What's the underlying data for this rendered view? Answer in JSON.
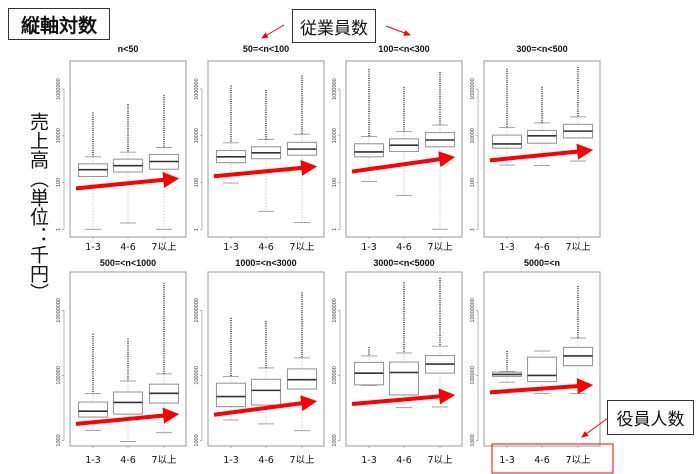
{
  "header": {
    "scale_note": "縦軸対数",
    "employees_label": "従業員数",
    "officers_label": "役員人数",
    "ylabel": "売上高（単位：千円）"
  },
  "colors": {
    "arrow": "#ff0000",
    "box": "#999999",
    "median": "#333333",
    "frame": "#aaaaaa"
  },
  "chart_data": [
    {
      "type": "box",
      "title": "n<50",
      "categories": [
        "1-3",
        "4-6",
        "7以上"
      ],
      "yscale": "log10",
      "ylim_log10": [
        -0.33,
        7.2
      ],
      "yticks": [
        {
          "log": 0,
          "label": "1"
        },
        {
          "log": 2,
          "label": "100"
        },
        {
          "log": 4,
          "label": "10000"
        },
        {
          "log": 6,
          "label": "1000000"
        }
      ],
      "boxes_log10": [
        {
          "lo": 0,
          "q1": 2.26,
          "med": 2.55,
          "q3": 2.8,
          "hi": 3.1,
          "max": 5.0
        },
        {
          "lo": 0.27,
          "q1": 2.45,
          "med": 2.72,
          "q3": 3.0,
          "hi": 3.3,
          "max": 5.36
        },
        {
          "lo": 0,
          "q1": 2.57,
          "med": 2.9,
          "q3": 3.2,
          "hi": 3.5,
          "max": 5.75
        }
      ],
      "trend_arrow_log10": [
        1.75,
        2.15
      ]
    },
    {
      "type": "box",
      "title": "50=<n<100",
      "categories": [
        "1-3",
        "4-6",
        "7以上"
      ],
      "yscale": "log10",
      "ylim_log10": [
        -0.33,
        7.2
      ],
      "yticks": [
        {
          "log": 0,
          "label": "1"
        },
        {
          "log": 2,
          "label": "100"
        },
        {
          "log": 4,
          "label": "10000"
        },
        {
          "log": 6,
          "label": "1000000"
        }
      ],
      "boxes_log10": [
        {
          "lo": 1.98,
          "q1": 2.85,
          "med": 3.1,
          "q3": 3.37,
          "hi": 3.7,
          "max": 6.15
        },
        {
          "lo": 0.77,
          "q1": 3.02,
          "med": 3.27,
          "q3": 3.53,
          "hi": 3.84,
          "max": 5.96
        },
        {
          "lo": 0.29,
          "q1": 3.17,
          "med": 3.43,
          "q3": 3.72,
          "hi": 4.07,
          "max": 6.58
        }
      ],
      "trend_arrow_log10": [
        2.27,
        2.66
      ]
    },
    {
      "type": "box",
      "title": "100=<n<300",
      "categories": [
        "1-3",
        "4-6",
        "7以上"
      ],
      "yscale": "log10",
      "ylim_log10": [
        -0.33,
        7.2
      ],
      "yticks": [
        {
          "log": 0,
          "label": "1"
        },
        {
          "log": 2,
          "label": "100"
        },
        {
          "log": 4,
          "label": "10000"
        },
        {
          "log": 6,
          "label": "1000000"
        }
      ],
      "boxes_log10": [
        {
          "lo": 2.05,
          "q1": 3.1,
          "med": 3.31,
          "q3": 3.66,
          "hi": 3.97,
          "max": 6.85
        },
        {
          "lo": 1.45,
          "q1": 3.33,
          "med": 3.6,
          "q3": 3.87,
          "hi": 4.19,
          "max": 6.1
        },
        {
          "lo": 0,
          "q1": 3.53,
          "med": 3.82,
          "q3": 4.14,
          "hi": 4.46,
          "max": 6.73
        }
      ],
      "trend_arrow_log10": [
        2.47,
        3.05
      ]
    },
    {
      "type": "box",
      "title": "300=<n<500",
      "categories": [
        "1-3",
        "4-6",
        "7以上"
      ],
      "yscale": "log10",
      "ylim_log10": [
        -0.33,
        7.2
      ],
      "yticks": [
        {
          "log": 0,
          "label": "1"
        },
        {
          "log": 2,
          "label": "100"
        },
        {
          "log": 4,
          "label": "10000"
        },
        {
          "log": 6,
          "label": "1000000"
        }
      ],
      "boxes_log10": [
        {
          "lo": 2.75,
          "q1": 3.47,
          "med": 3.65,
          "q3": 4.03,
          "hi": 4.35,
          "max": 6.87
        },
        {
          "lo": 2.73,
          "q1": 3.68,
          "med": 4.0,
          "q3": 4.23,
          "hi": 4.55,
          "max": 6.1
        },
        {
          "lo": 2.92,
          "q1": 3.91,
          "med": 4.2,
          "q3": 4.49,
          "hi": 4.81,
          "max": 6.95
        }
      ],
      "trend_arrow_log10": [
        2.95,
        3.36
      ]
    },
    {
      "type": "box",
      "title": "500=<n<1000",
      "categories": [
        "1-3",
        "4-6",
        "7以上"
      ],
      "yscale": "log10",
      "ylim_log10": [
        2.83,
        8.18
      ],
      "yticks": [
        {
          "log": 3,
          "label": "1000"
        },
        {
          "log": 5,
          "label": "100000"
        },
        {
          "log": 7,
          "label": "10000000"
        }
      ],
      "boxes_log10": [
        {
          "lo": 3.31,
          "q1": 3.72,
          "med": 3.9,
          "q3": 4.18,
          "hi": 4.44,
          "max": 6.28
        },
        {
          "lo": 2.97,
          "q1": 3.81,
          "med": 4.17,
          "q3": 4.49,
          "hi": 4.83,
          "max": 6.13
        },
        {
          "lo": 3.24,
          "q1": 4.15,
          "med": 4.45,
          "q3": 4.73,
          "hi": 5.05,
          "max": 7.85
        }
      ],
      "trend_arrow_log10": [
        3.51,
        3.79
      ]
    },
    {
      "type": "box",
      "title": "1000=<n<3000",
      "categories": [
        "1-3",
        "4-6",
        "7以上"
      ],
      "yscale": "log10",
      "ylim_log10": [
        2.83,
        8.18
      ],
      "yticks": [
        {
          "log": 3,
          "label": "1000"
        },
        {
          "log": 5,
          "label": "100000"
        },
        {
          "log": 7,
          "label": "10000000"
        }
      ],
      "boxes_log10": [
        {
          "lo": 3.63,
          "q1": 4.04,
          "med": 4.35,
          "q3": 4.76,
          "hi": 4.97,
          "max": 6.77
        },
        {
          "lo": 3.51,
          "q1": 4.09,
          "med": 4.54,
          "q3": 4.88,
          "hi": 5.23,
          "max": 6.67
        },
        {
          "lo": 3.3,
          "q1": 4.58,
          "med": 4.87,
          "q3": 5.2,
          "hi": 5.54,
          "max": 7.55
        }
      ],
      "trend_arrow_log10": [
        3.79,
        4.18
      ]
    },
    {
      "type": "box",
      "title": "3000=<n<5000",
      "categories": [
        "1-3",
        "4-6",
        "7以上"
      ],
      "yscale": "log10",
      "ylim_log10": [
        2.83,
        8.18
      ],
      "yticks": [
        {
          "log": 3,
          "label": "1000"
        },
        {
          "log": 5,
          "label": "100000"
        },
        {
          "log": 7,
          "label": "10000000"
        }
      ],
      "boxes_log10": [
        {
          "lo": 4.69,
          "q1": 4.71,
          "med": 5.07,
          "q3": 5.4,
          "hi": 5.6,
          "max": 5.87
        },
        {
          "lo": 4.01,
          "q1": 4.4,
          "med": 5.09,
          "q3": 5.41,
          "hi": 5.69,
          "max": 7.86
        },
        {
          "lo": 4.03,
          "q1": 5.07,
          "med": 5.35,
          "q3": 5.61,
          "hi": 5.9,
          "max": 8.0
        }
      ],
      "trend_arrow_log10": [
        4.12,
        4.38
      ]
    },
    {
      "type": "box",
      "title": "5000=<n",
      "categories": [
        "1-3",
        "4-6",
        "7以上"
      ],
      "yscale": "log10",
      "ylim_log10": [
        2.83,
        8.18
      ],
      "yticks": [
        {
          "log": 3,
          "label": "1000"
        },
        {
          "log": 5,
          "label": "100000"
        },
        {
          "log": 7,
          "label": "10000000"
        }
      ],
      "boxes_log10": [
        {
          "lo": 4.79,
          "q1": 4.97,
          "med": 5.03,
          "q3": 5.1,
          "hi": 5.12,
          "max": 5.75
        },
        {
          "lo": 4.44,
          "q1": 4.81,
          "med": 5.0,
          "q3": 5.56,
          "hi": 5.75,
          "max": null
        },
        {
          "lo": 4.44,
          "q1": 5.3,
          "med": 5.6,
          "q3": 5.86,
          "hi": 6.15,
          "max": 7.75
        }
      ],
      "trend_arrow_log10": [
        4.48,
        4.69
      ]
    }
  ]
}
